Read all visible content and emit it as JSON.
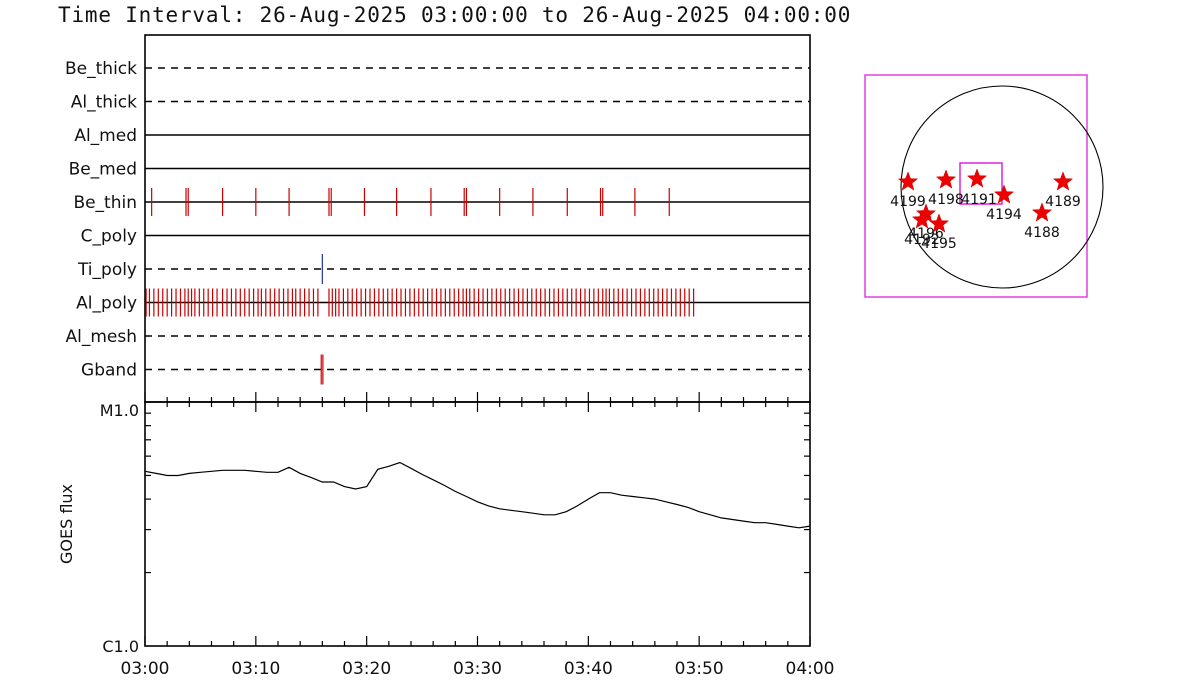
{
  "title": "Time Interval: 26-Aug-2025 03:00:00 to 26-Aug-2025 04:00:00",
  "chart_data": [
    {
      "type": "event-timeline",
      "x_unit": "minutes after 03:00",
      "xlim": [
        0,
        60
      ],
      "rows": [
        {
          "name": "Be_thick",
          "style": "dashed",
          "events": []
        },
        {
          "name": "Al_thick",
          "style": "dashed",
          "events": []
        },
        {
          "name": "Al_med",
          "style": "solid",
          "events": []
        },
        {
          "name": "Be_med",
          "style": "solid",
          "events": []
        },
        {
          "name": "Be_thin",
          "style": "solid",
          "color": "#cc0000",
          "events": [
            0.6,
            3.7,
            3.9,
            7.0,
            10.0,
            13.0,
            16.6,
            16.8,
            19.8,
            22.7,
            25.8,
            28.8,
            29.0,
            32.0,
            35.0,
            38.1,
            41.1,
            41.3,
            44.2,
            47.3
          ]
        },
        {
          "name": "C_poly",
          "style": "solid",
          "events": []
        },
        {
          "name": "Ti_poly",
          "style": "dashed",
          "color": "#223399",
          "events": [
            16.0
          ]
        },
        {
          "name": "Al_poly",
          "style": "solid",
          "color": "#cc0000",
          "events": [
            0.1,
            0.4,
            0.8,
            1.2,
            1.6,
            2.0,
            2.4,
            2.8,
            3.2,
            3.6,
            3.9,
            4.2,
            4.5,
            4.9,
            5.3,
            5.7,
            6.1,
            6.5,
            7.0,
            7.4,
            7.8,
            8.2,
            8.6,
            9.0,
            9.4,
            9.8,
            10.2,
            10.5,
            10.9,
            11.3,
            11.7,
            12.1,
            12.5,
            12.9,
            13.3,
            13.6,
            14.0,
            14.4,
            14.8,
            15.2,
            15.6,
            16.6,
            16.9,
            17.2,
            17.5,
            17.9,
            18.3,
            18.7,
            19.1,
            19.5,
            19.9,
            20.3,
            20.7,
            21.1,
            21.5,
            21.9,
            22.3,
            22.7,
            23.1,
            23.5,
            23.9,
            24.3,
            24.7,
            25.1,
            25.5,
            25.9,
            26.3,
            26.7,
            27.1,
            27.5,
            27.9,
            28.3,
            28.7,
            29.0,
            29.3,
            29.7,
            30.1,
            30.5,
            30.9,
            31.3,
            31.7,
            32.1,
            32.5,
            32.9,
            33.3,
            33.7,
            34.1,
            34.5,
            34.9,
            35.3,
            35.7,
            36.1,
            36.5,
            36.9,
            37.3,
            37.7,
            38.1,
            38.5,
            38.9,
            39.3,
            39.7,
            40.1,
            40.5,
            40.9,
            41.3,
            41.6,
            41.9,
            42.3,
            42.7,
            43.1,
            43.5,
            43.9,
            44.3,
            44.7,
            45.1,
            45.5,
            45.9,
            46.3,
            46.7,
            47.1,
            47.5,
            47.9,
            48.3,
            48.7,
            49.1,
            49.5
          ]
        },
        {
          "name": "Al_mesh",
          "style": "dashed",
          "events": []
        },
        {
          "name": "Gband",
          "style": "dashed",
          "color": "#cc0000",
          "events": [
            15.9,
            16.05
          ]
        }
      ]
    },
    {
      "type": "line",
      "xlabel": "",
      "ylabel": "GOES flux",
      "x_unit": "minutes after 03:00",
      "xlim": [
        0,
        60
      ],
      "y_scale": "log",
      "ylim": [
        1e-06,
        1e-05
      ],
      "ytick_labels": [
        "C1.0",
        "M1.0"
      ],
      "xtick_labels": [
        "03:00",
        "03:10",
        "03:20",
        "03:30",
        "03:40",
        "03:50",
        "04:00"
      ],
      "series": [
        {
          "x": [
            0,
            1,
            2,
            3,
            4,
            5,
            6,
            7,
            8,
            9,
            10,
            11,
            12,
            13,
            14,
            15,
            16,
            17,
            18,
            19,
            20,
            21,
            22,
            23,
            24,
            25,
            26,
            27,
            28,
            29,
            30,
            31,
            32,
            33,
            34,
            35,
            36,
            37,
            38,
            39,
            40,
            41,
            42,
            43,
            44,
            45,
            46,
            47,
            48,
            49,
            50,
            51,
            52,
            53,
            54,
            55,
            56,
            57,
            58,
            59,
            60
          ],
          "y": [
            5.2e-06,
            5.1e-06,
            5e-06,
            5e-06,
            5.1e-06,
            5.15e-06,
            5.2e-06,
            5.25e-06,
            5.25e-06,
            5.25e-06,
            5.2e-06,
            5.15e-06,
            5.15e-06,
            5.4e-06,
            5.1e-06,
            4.9e-06,
            4.7e-06,
            4.7e-06,
            4.5e-06,
            4.4e-06,
            4.5e-06,
            5.3e-06,
            5.45e-06,
            5.65e-06,
            5.35e-06,
            5.05e-06,
            4.8e-06,
            4.55e-06,
            4.3e-06,
            4.1e-06,
            3.9e-06,
            3.75e-06,
            3.65e-06,
            3.6e-06,
            3.55e-06,
            3.5e-06,
            3.45e-06,
            3.45e-06,
            3.55e-06,
            3.75e-06,
            4e-06,
            4.25e-06,
            4.25e-06,
            4.15e-06,
            4.1e-06,
            4.05e-06,
            4e-06,
            3.9e-06,
            3.8e-06,
            3.7e-06,
            3.55e-06,
            3.45e-06,
            3.35e-06,
            3.3e-06,
            3.25e-06,
            3.2e-06,
            3.2e-06,
            3.15e-06,
            3.1e-06,
            3.05e-06,
            3.1e-06
          ]
        }
      ]
    }
  ],
  "solar_map": {
    "frame_color": "#dd22dd",
    "regions": [
      {
        "label": "4199"
      },
      {
        "label": "4198"
      },
      {
        "label": "4191"
      },
      {
        "label": "4194"
      },
      {
        "label": "4189"
      },
      {
        "label": "4188"
      },
      {
        "label": "4196"
      },
      {
        "label": "4192"
      },
      {
        "label": "4195"
      }
    ]
  }
}
